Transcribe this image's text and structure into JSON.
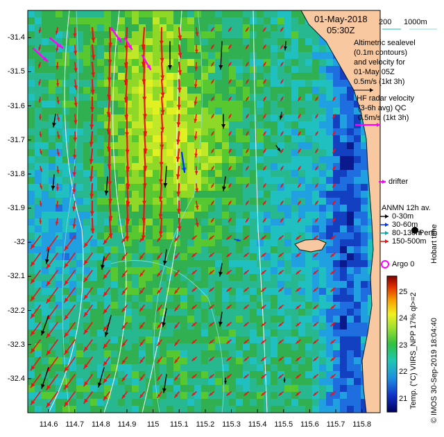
{
  "chart_data": {
    "type": "map",
    "y_tick_labels": [
      "-31.4",
      "-31.5",
      "-31.6",
      "-31.7",
      "-31.8",
      "-31.9",
      "-32",
      "-32.1",
      "-32.2",
      "-32.3",
      "-32.4"
    ],
    "x_tick_labels": [
      "114.6",
      "114.7",
      "114.8",
      "114.9",
      "115",
      "115.1",
      "115.2",
      "115.3",
      "115.4",
      "115.5",
      "115.6",
      "115.7",
      "115.8"
    ],
    "lon_range": [
      114.52,
      115.87
    ],
    "lat_range": [
      -32.5,
      -31.32
    ],
    "colorbar": {
      "ticks": [
        "25",
        "24",
        "23",
        "22",
        "21"
      ],
      "range": [
        20.5,
        25.6
      ],
      "label": "Temp. (°C) VIIRS_NPP 17% ql>=2"
    }
  },
  "header": {
    "date": "01-May-2018",
    "time": "05:30Z",
    "bathy_200": "200",
    "bathy_1000": "1000m"
  },
  "legend": {
    "altimetric_lines": [
      "Altimetric sealevel",
      "(0.1m contours)",
      "and velocity for",
      "01-May 05Z",
      "0.5m/s (1kt 3h)"
    ],
    "hf_lines": [
      "HF radar velocity",
      "(3-6h avg) QC",
      "0.5m/s (1kt 3h)"
    ],
    "drifter": "drifter",
    "anmn_title": "ANMN 12h av.",
    "anmn_items": [
      "0-30m",
      "30-60m",
      "80-130m",
      "150-500m"
    ],
    "perth": "Perth",
    "hobart": "Hobart time",
    "argo": "Argo 0"
  },
  "footer": {
    "copyright": "© IMOS 30-Sep-2019 18:04:40"
  },
  "colors": {
    "land": "#f8c8a0",
    "coast": "#111111",
    "hf_arrow": "#ee1111",
    "adcp_arrow": "#000000",
    "mid_arrow": "#0033ff",
    "drifter": "#ff00ff",
    "contour": "#ffffff",
    "bathy": "#88dddd"
  }
}
